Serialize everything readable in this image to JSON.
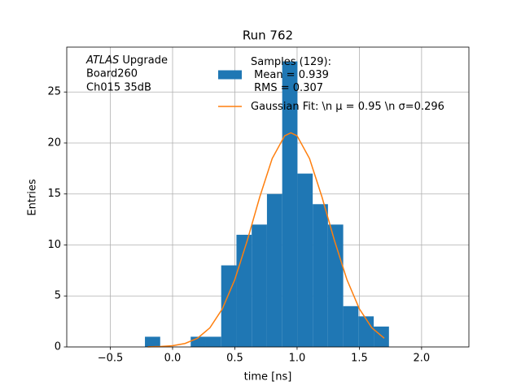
{
  "chart_data": {
    "type": "histogram",
    "title": "Run 762",
    "xlabel": "time [ns]",
    "ylabel": "Entries",
    "annotation_italic": "ATLAS",
    "annotation": [
      " Upgrade",
      " Board260",
      " Ch015 35dB"
    ],
    "bins": [
      -0.222,
      -0.0995,
      0.023,
      0.1455,
      0.268,
      0.3905,
      0.513,
      0.6355,
      0.758,
      0.8805,
      1.003,
      1.1255,
      1.248,
      1.3705,
      1.493,
      1.6155,
      1.738
    ],
    "series": [
      {
        "type": "histogram",
        "name": "Samples (129):\n Mean = 0.939\n RMS = 0.307",
        "color": "#1f77b4",
        "values": [
          1,
          0,
          0,
          1,
          1,
          8,
          11,
          12,
          15,
          28,
          17,
          14,
          12,
          4,
          3,
          2
        ]
      },
      {
        "type": "line",
        "name": "Gaussian Fit: \\n μ = 0.95 \\n σ=0.296",
        "color": "#ff7f0e",
        "x": [
          -0.2,
          -0.1,
          0.0,
          0.1,
          0.2,
          0.3,
          0.4,
          0.5,
          0.6,
          0.7,
          0.8,
          0.9,
          0.95,
          1.0,
          1.1,
          1.2,
          1.3,
          1.4,
          1.5,
          1.6,
          1.7
        ],
        "values": [
          0.011,
          0.039,
          0.122,
          0.34,
          0.848,
          1.88,
          3.74,
          6.61,
          10.44,
          14.7,
          18.47,
          20.7,
          21,
          20.7,
          18.47,
          14.7,
          10.44,
          6.61,
          3.74,
          1.88,
          0.848
        ]
      }
    ],
    "xlim": [
      -0.85,
      2.38
    ],
    "ylim": [
      0,
      29.4
    ],
    "xticks": [
      {
        "value": -0.5,
        "label": "−0.5"
      },
      {
        "value": 0,
        "label": "0.0"
      },
      0.5,
      {
        "value": 1,
        "label": "1.0"
      },
      1.5,
      {
        "value": 2,
        "label": "2.0"
      }
    ],
    "yticks": [
      0,
      5,
      10,
      15,
      20,
      25
    ],
    "grid": true
  }
}
